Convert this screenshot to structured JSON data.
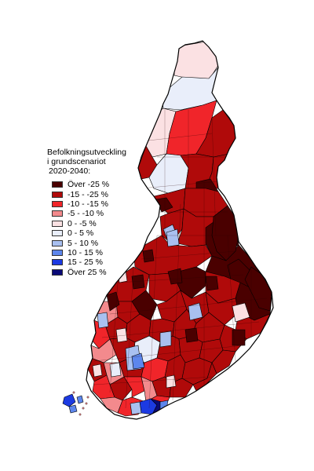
{
  "legend": {
    "title_lines": [
      "Befolkningsutveckling",
      "i grundscenariot",
      "2020-2040:"
    ],
    "items": [
      {
        "label": "Över -25 %",
        "color": "#4a0000"
      },
      {
        "label": "-15 - -25 %",
        "color": "#b00a0a"
      },
      {
        "label": "-10 - -15 %",
        "color": "#f0252a"
      },
      {
        "label": "-5 - -10 %",
        "color": "#f38a8d"
      },
      {
        "label": "0 - -5 %",
        "color": "#fbe1e3"
      },
      {
        "label": "0 - 5 %",
        "color": "#e9eefa"
      },
      {
        "label": "5 - 10 %",
        "color": "#a9c0f0"
      },
      {
        "label": "10 - 15 %",
        "color": "#5d86ec"
      },
      {
        "label": "15 - 25 %",
        "color": "#1c3ae2"
      },
      {
        "label": "Över 25 %",
        "color": "#0a0a78"
      }
    ]
  },
  "colors": {
    "outline": "#000000",
    "border": "#2b0000"
  }
}
